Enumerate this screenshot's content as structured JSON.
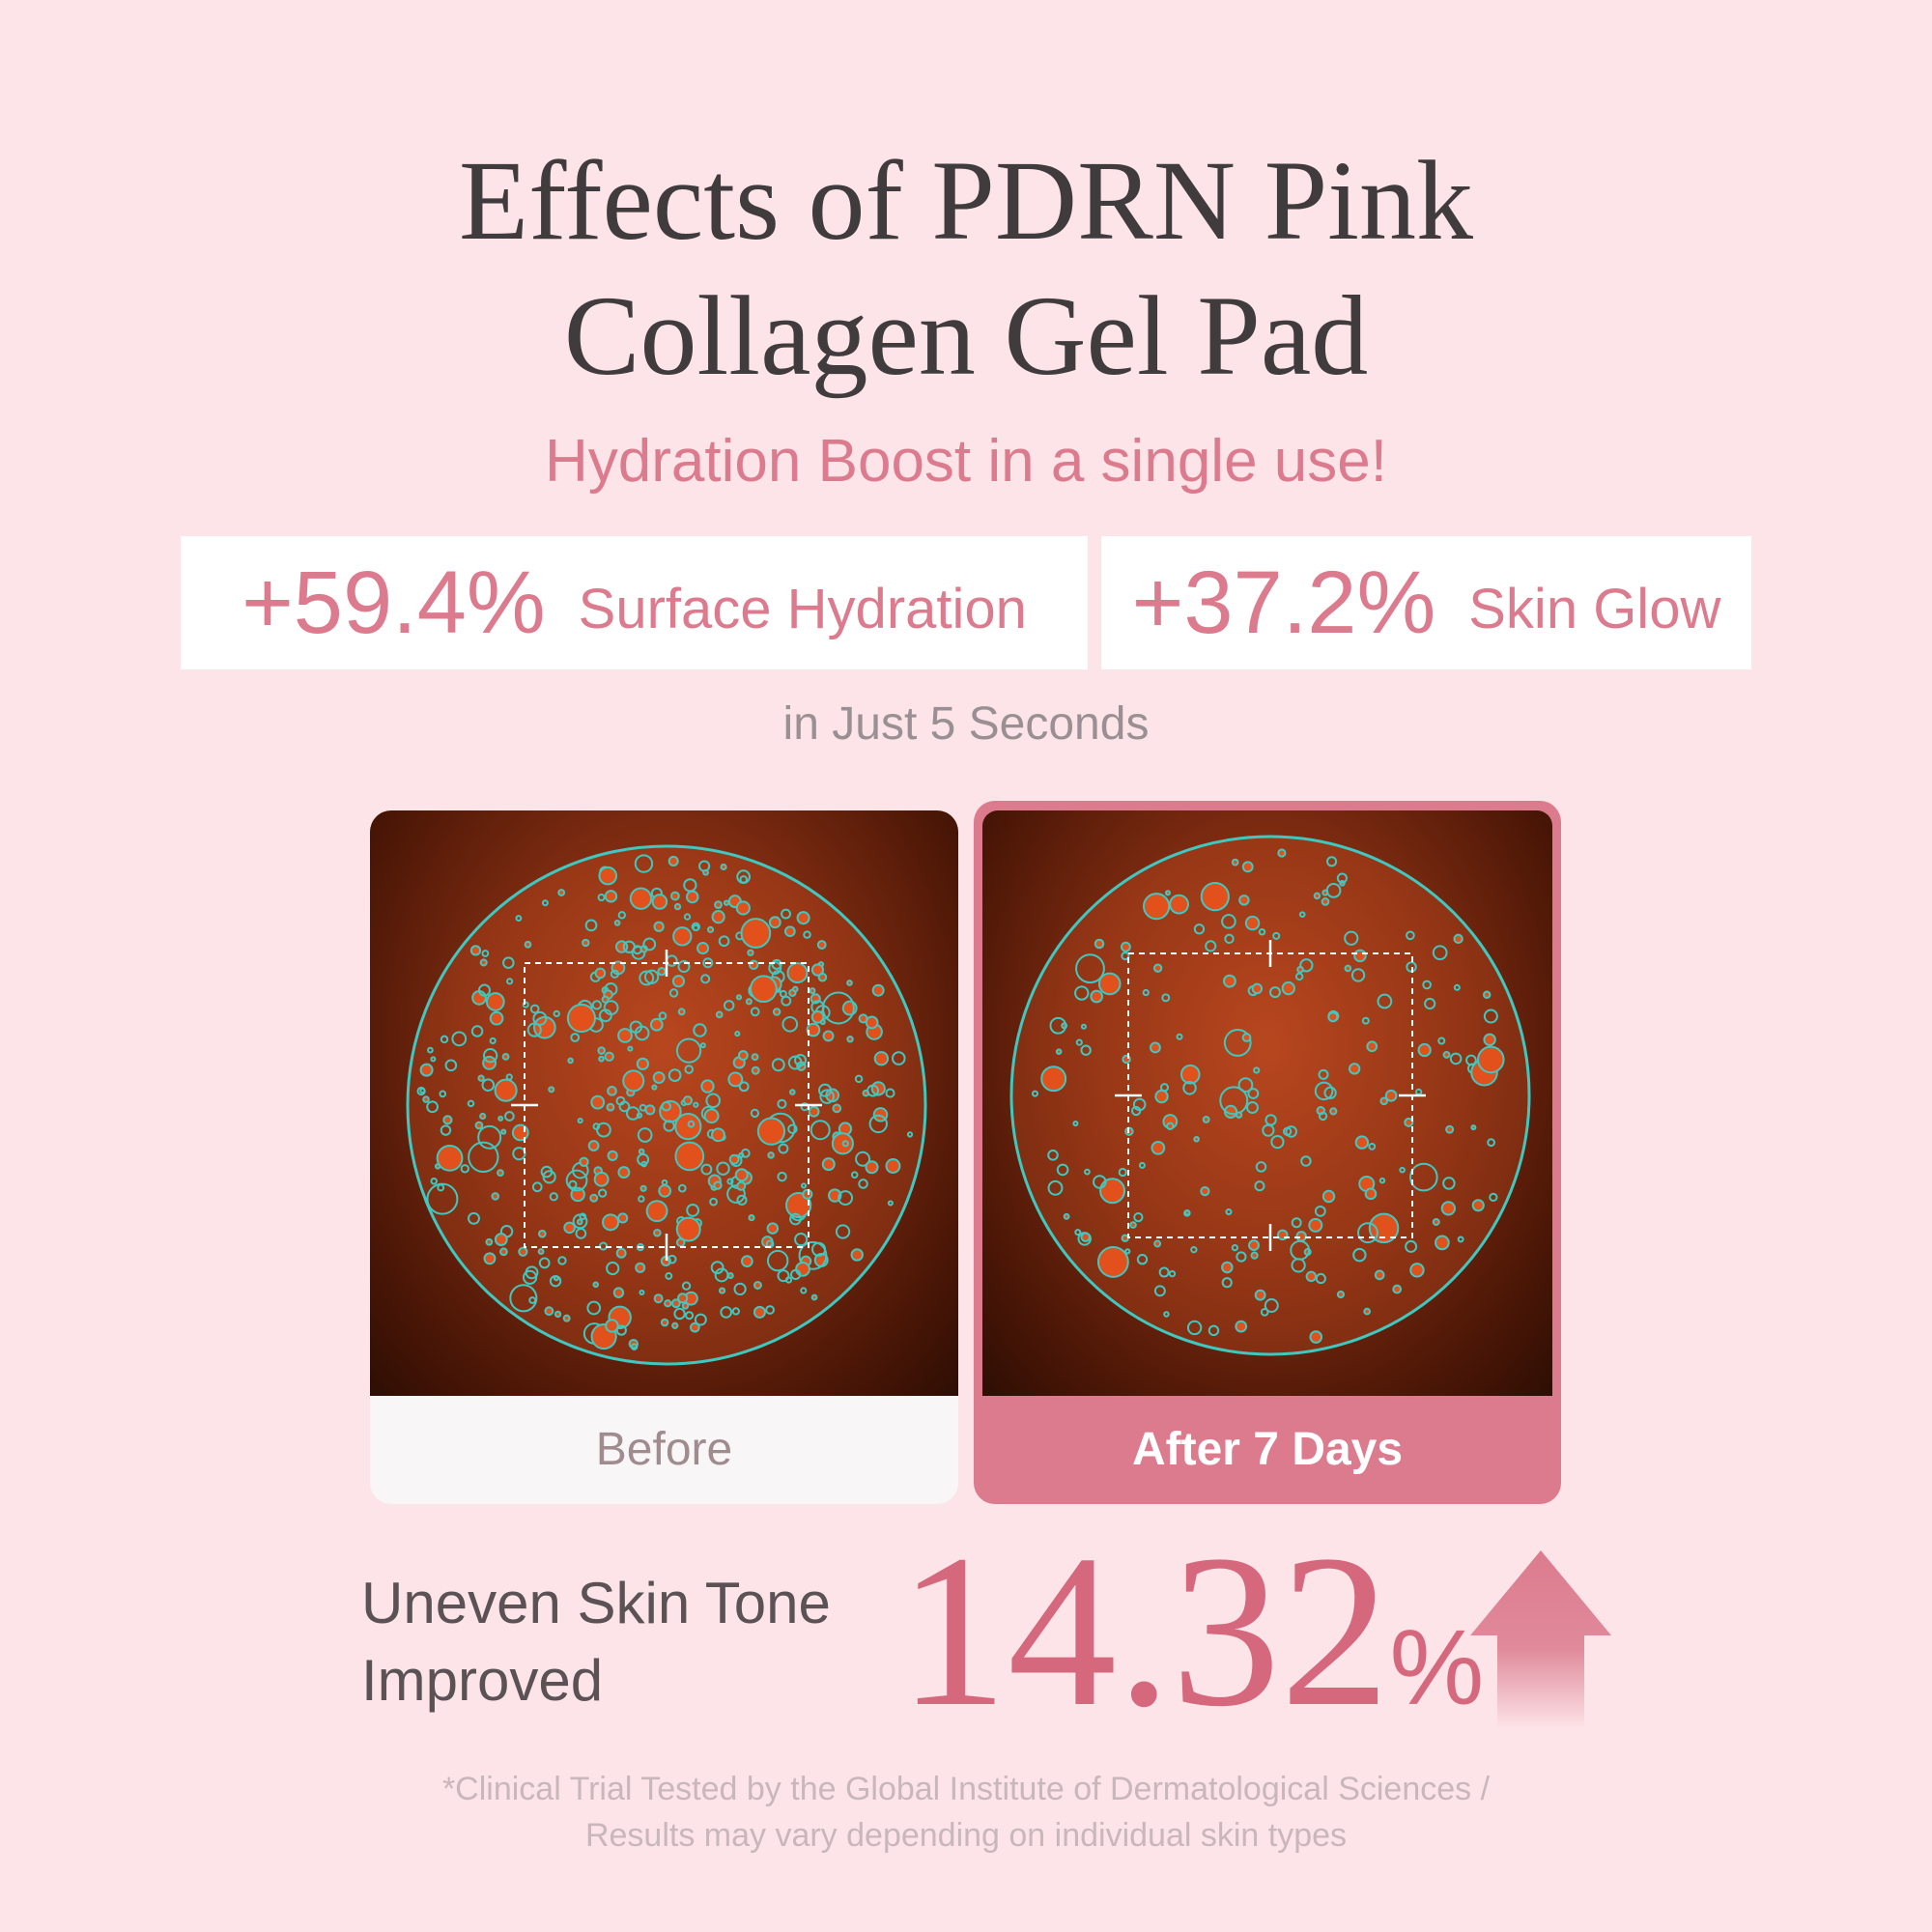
{
  "title": {
    "line1": "Effects of PDRN Pink",
    "line2": "Collagen Gel Pad"
  },
  "subtitle": "Hydration Boost in a single use!",
  "stats": [
    {
      "value": "+59.4%",
      "label": "Surface Hydration"
    },
    {
      "value": "+37.2%",
      "label": "Skin Glow"
    }
  ],
  "duration_note": "in Just 5 Seconds",
  "comparison": {
    "before": {
      "caption": "Before"
    },
    "after": {
      "caption": "After 7 Days"
    }
  },
  "result": {
    "label_line1": "Uneven Skin Tone",
    "label_line2": "Improved",
    "value": "14.32",
    "unit": "%",
    "direction_icon": "arrow-up-icon"
  },
  "footnote": {
    "line1": "*Clinical Trial Tested by the Global Institute of Dermatological Sciences /",
    "line2": "Results may vary depending on individual skin types"
  },
  "colors": {
    "background": "#fde4e8",
    "accent": "#dc7b8e",
    "title": "#403c3d",
    "contour": "#3fc8c0"
  }
}
